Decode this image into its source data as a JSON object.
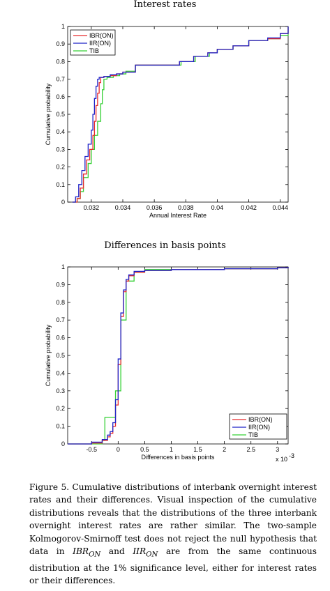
{
  "colors": {
    "IBR(ON)": "#e8292b",
    "IIR(ON)": "#1f23c8",
    "TIB": "#35d035"
  },
  "chart_data": [
    {
      "type": "line",
      "title": "Interest rates",
      "xlabel": "Annual Interest Rate",
      "ylabel": "Cumulative probability",
      "xlim": [
        0.0305,
        0.0445
      ],
      "ylim": [
        0,
        1
      ],
      "xticks": [
        "0.032",
        "0.034",
        "0.036",
        "0.038",
        "0.04",
        "0.042",
        "0.044"
      ],
      "yticks": [
        "0",
        "0.1",
        "0.2",
        "0.3",
        "0.4",
        "0.5",
        "0.6",
        "0.7",
        "0.8",
        "0.9",
        "1"
      ],
      "legend": "top-left",
      "series": [
        {
          "name": "IBR(ON)",
          "x": [
            0.0308,
            0.0311,
            0.0313,
            0.0315,
            0.0317,
            0.0319,
            0.0321,
            0.0322,
            0.0323,
            0.0324,
            0.0325,
            0.0326,
            0.0327,
            0.0328,
            0.0332,
            0.0336,
            0.034,
            0.0348,
            0.0355,
            0.0365,
            0.0376,
            0.0385,
            0.0394,
            0.04,
            0.041,
            0.042,
            0.0432,
            0.044,
            0.0445
          ],
          "y": [
            0,
            0.02,
            0.08,
            0.16,
            0.24,
            0.3,
            0.38,
            0.46,
            0.55,
            0.62,
            0.68,
            0.71,
            0.71,
            0.715,
            0.72,
            0.73,
            0.74,
            0.78,
            0.78,
            0.78,
            0.8,
            0.83,
            0.85,
            0.87,
            0.89,
            0.92,
            0.93,
            0.96,
            1.0
          ]
        },
        {
          "name": "IIR(ON)",
          "x": [
            0.0308,
            0.031,
            0.0312,
            0.0314,
            0.0316,
            0.0318,
            0.032,
            0.0321,
            0.0322,
            0.0323,
            0.0324,
            0.0325,
            0.0326,
            0.0328,
            0.0332,
            0.0336,
            0.034,
            0.0348,
            0.0355,
            0.0365,
            0.0376,
            0.0385,
            0.0394,
            0.04,
            0.041,
            0.042,
            0.0432,
            0.044,
            0.0445
          ],
          "y": [
            0,
            0.03,
            0.1,
            0.18,
            0.26,
            0.33,
            0.41,
            0.5,
            0.59,
            0.66,
            0.7,
            0.71,
            0.71,
            0.715,
            0.725,
            0.73,
            0.74,
            0.78,
            0.78,
            0.78,
            0.8,
            0.83,
            0.85,
            0.87,
            0.89,
            0.92,
            0.935,
            0.96,
            1.0
          ]
        },
        {
          "name": "TIB",
          "x": [
            0.0308,
            0.0311,
            0.0313,
            0.0315,
            0.0318,
            0.032,
            0.0322,
            0.0324,
            0.0326,
            0.0327,
            0.0328,
            0.033,
            0.0334,
            0.0338,
            0.0342,
            0.0348,
            0.0355,
            0.0365,
            0.0377,
            0.0386,
            0.0395,
            0.04,
            0.041,
            0.042,
            0.0432,
            0.044,
            0.0445
          ],
          "y": [
            0,
            0.02,
            0.06,
            0.14,
            0.22,
            0.3,
            0.38,
            0.46,
            0.56,
            0.64,
            0.7,
            0.71,
            0.72,
            0.73,
            0.745,
            0.78,
            0.78,
            0.78,
            0.8,
            0.83,
            0.85,
            0.87,
            0.89,
            0.92,
            0.93,
            0.95,
            1.0
          ]
        }
      ]
    },
    {
      "type": "line",
      "title": "Differences in basis points",
      "xlabel": "Differences in basis points",
      "ylabel": "Cumulative probability",
      "xmultiplier": "x 10",
      "xmultiplier_exp": "-3",
      "xlim": [
        -0.00095,
        0.0032
      ],
      "ylim": [
        0,
        1
      ],
      "xticks": [
        "-0.5",
        "0",
        "0.5",
        "1",
        "1.5",
        "2",
        "2.5",
        "3"
      ],
      "yticks": [
        "0",
        "0.1",
        "0.2",
        "0.3",
        "0.4",
        "0.5",
        "0.6",
        "0.7",
        "0.8",
        "0.9",
        "1"
      ],
      "legend": "bottom-right",
      "series": [
        {
          "name": "IBR(ON)",
          "x": [
            -0.00095,
            -0.0005,
            -0.0003,
            -0.0002,
            -0.00015,
            -0.0001,
            -5e-05,
            0,
            5e-05,
            0.0001,
            0.00015,
            0.0002,
            0.0003,
            0.0005,
            0.001,
            0.002,
            0.003,
            0.0032
          ],
          "y": [
            0,
            0.005,
            0.02,
            0.04,
            0.06,
            0.1,
            0.22,
            0.45,
            0.72,
            0.86,
            0.92,
            0.95,
            0.97,
            0.98,
            0.985,
            0.99,
            0.995,
            1.0
          ]
        },
        {
          "name": "IIR(ON)",
          "x": [
            -0.00095,
            -0.0005,
            -0.0003,
            -0.0002,
            -0.00015,
            -0.0001,
            -5e-05,
            0,
            5e-05,
            0.0001,
            0.00015,
            0.0002,
            0.0003,
            0.0005,
            0.001,
            0.002,
            0.003,
            0.0032
          ],
          "y": [
            0,
            0.01,
            0.025,
            0.05,
            0.07,
            0.12,
            0.25,
            0.48,
            0.74,
            0.87,
            0.93,
            0.955,
            0.975,
            0.98,
            0.985,
            0.99,
            0.995,
            1.0
          ]
        },
        {
          "name": "TIB",
          "x": [
            -0.00095,
            -0.0005,
            -0.0003,
            -0.00025,
            -0.00015,
            -0.0001,
            -5e-05,
            0,
            5e-05,
            0.0001,
            0.00015,
            0.0002,
            0.0003,
            0.0005,
            0.001,
            0.002,
            0.003,
            0.0032
          ],
          "y": [
            0,
            0.0,
            0.02,
            0.15,
            0.15,
            0.15,
            0.3,
            0.3,
            0.7,
            0.7,
            0.92,
            0.92,
            0.97,
            0.985,
            0.985,
            0.99,
            0.995,
            1.0
          ]
        }
      ]
    }
  ],
  "caption": {
    "p1": "Figure 5. Cumulative distributions of interbank overnight interest rates and their differences. Visual inspection of the cumulative distributions reveals that the distributions of the three interbank overnight interest rates are rather similar. The two-sample Kolmogorov-Smirnoff test does not reject the null hypothesis that data in ",
    "var1_base": "IBR",
    "var1_sub": "ON",
    "and": " and ",
    "var2_base": "IIR",
    "var2_sub": "ON",
    "p2": " are from the same continuous distribution at the 1% significance level, either for interest rates or their differences."
  }
}
